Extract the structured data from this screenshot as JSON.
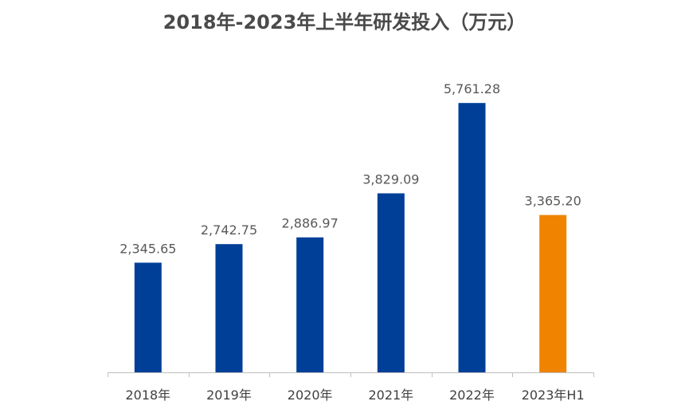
{
  "chart_data": {
    "type": "bar",
    "title": "2018年-2023年上半年研发投入（万元）",
    "categories": [
      "2018年",
      "2019年",
      "2020年",
      "2021年",
      "2022年",
      "2023年H1"
    ],
    "values": [
      2345.65,
      2742.75,
      2886.97,
      3829.09,
      5761.28,
      3365.2
    ],
    "value_labels": [
      "2,345.65",
      "2,742.75",
      "2,886.97",
      "3,829.09",
      "5,761.28",
      "3,365.20"
    ],
    "bar_colors": [
      "#003f98",
      "#003f98",
      "#003f98",
      "#003f98",
      "#003f98",
      "#f08300"
    ],
    "tick_label_colors": [
      "#404040",
      "#404040",
      "#404040",
      "#404040",
      "#404040",
      "#f08300"
    ],
    "axis_color": "#bfbfbf",
    "xlabel": "",
    "ylabel": "",
    "ylim": [
      0,
      6600
    ],
    "grid": false,
    "legend": "none"
  }
}
